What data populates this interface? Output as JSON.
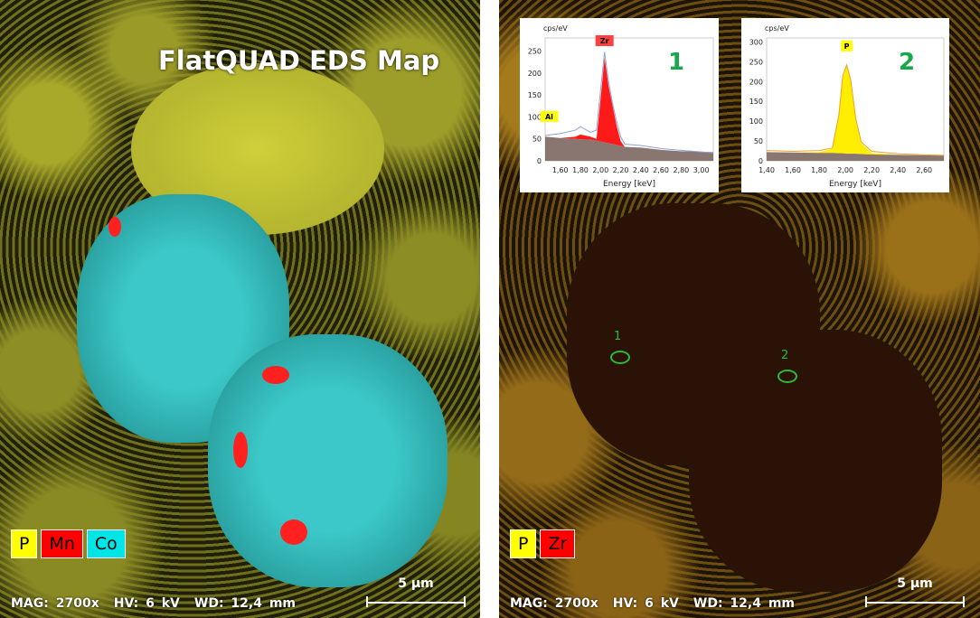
{
  "left_panel": {
    "title": "FlatQUAD EDS Map",
    "legend": [
      {
        "label": "P",
        "color": "#ffff00"
      },
      {
        "label": "Mn",
        "color": "#ff0000"
      },
      {
        "label": "Co",
        "color": "#00e5e5"
      }
    ],
    "info": {
      "mag": "MAG: 2700x",
      "hv": "HV: 6 kV",
      "wd": "WD: 12,4 mm"
    },
    "scale": "5 µm"
  },
  "right_panel": {
    "legend": [
      {
        "label": "P",
        "color": "#ffff00"
      },
      {
        "label": "Zr",
        "color": "#ff0000"
      }
    ],
    "info": {
      "mag": "MAG: 2700x",
      "hv": "HV: 6 kV",
      "wd": "WD: 12,4 mm"
    },
    "scale": "5 µm",
    "markers": [
      "1",
      "2"
    ]
  },
  "chart_data": [
    {
      "type": "area",
      "label": "1",
      "ylabel": "cps/eV",
      "xlabel": "Energy [keV]",
      "xlim": [
        1.45,
        3.12
      ],
      "ylim": [
        0,
        280
      ],
      "xticks": [
        "1,60",
        "1,80",
        "2,00",
        "2,20",
        "2,40",
        "2,60",
        "2,80",
        "3,00"
      ],
      "yticks": [
        "0",
        "50",
        "100",
        "150",
        "200",
        "250"
      ],
      "peaks": [
        {
          "element": "Al",
          "energy": 1.49,
          "color": "#ffff00"
        },
        {
          "element": "Zr",
          "energy": 2.04,
          "color": "#ff4040"
        }
      ],
      "x": [
        1.45,
        1.6,
        1.75,
        1.8,
        1.9,
        1.96,
        2.0,
        2.04,
        2.08,
        2.12,
        2.16,
        2.2,
        2.24,
        2.4,
        2.6,
        2.8,
        3.12
      ],
      "background": [
        55,
        52,
        50,
        49,
        48,
        46,
        44,
        42,
        40,
        38,
        36,
        34,
        32,
        30,
        25,
        22,
        20
      ],
      "element_fit": [
        55,
        52,
        55,
        60,
        55,
        50,
        140,
        235,
        170,
        125,
        80,
        45,
        32,
        30,
        25,
        22,
        20
      ],
      "measured": [
        58,
        62,
        70,
        78,
        65,
        70,
        160,
        248,
        180,
        130,
        90,
        55,
        38,
        35,
        28,
        24,
        18
      ]
    },
    {
      "type": "area",
      "label": "2",
      "ylabel": "cps/eV",
      "xlabel": "Energy [keV]",
      "xlim": [
        1.4,
        2.75
      ],
      "ylim": [
        0,
        310
      ],
      "xticks": [
        "1,40",
        "1,60",
        "1,80",
        "2,00",
        "2,20",
        "2,40",
        "2,60"
      ],
      "yticks": [
        "0",
        "50",
        "100",
        "150",
        "200",
        "250",
        "300"
      ],
      "peaks": [
        {
          "element": "P",
          "energy": 2.01,
          "color": "#ffff00"
        }
      ],
      "x": [
        1.4,
        1.6,
        1.8,
        1.9,
        1.95,
        1.98,
        2.01,
        2.04,
        2.08,
        2.12,
        2.2,
        2.4,
        2.6,
        2.75
      ],
      "background": [
        22,
        21,
        20,
        20,
        19,
        19,
        18,
        18,
        18,
        17,
        16,
        15,
        14,
        13
      ],
      "element_fit": [
        22,
        21,
        22,
        30,
        110,
        210,
        240,
        200,
        100,
        45,
        20,
        15,
        14,
        13
      ],
      "measured": [
        26,
        24,
        26,
        32,
        115,
        215,
        242,
        205,
        105,
        48,
        24,
        18,
        15,
        14
      ]
    }
  ],
  "colors": {
    "marker": "#2dbb3a",
    "background_fill": "#8a7670",
    "measured_line": "#8fa3d4"
  }
}
